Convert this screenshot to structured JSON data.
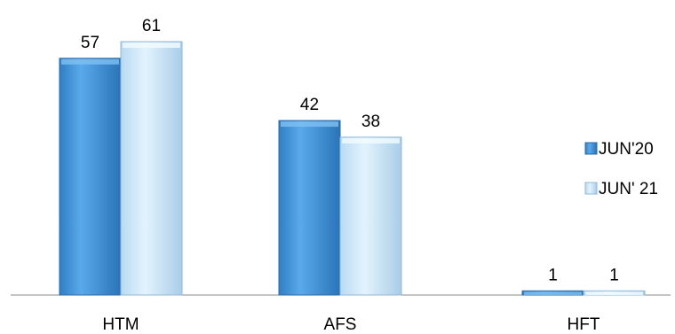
{
  "chart_data": {
    "type": "bar",
    "categories": [
      "HTM",
      "AFS",
      "HFT"
    ],
    "series": [
      {
        "name": "JUN'20",
        "values": [
          57,
          42,
          1
        ],
        "color": "#4a9be0"
      },
      {
        "name": "JUN' 21",
        "values": [
          61,
          38,
          1
        ],
        "color": "#d6ecfb"
      }
    ],
    "title": "",
    "xlabel": "",
    "ylabel": "",
    "ylim": [
      0,
      61
    ],
    "grid": false,
    "legend_position": "right",
    "data_labels": true
  }
}
